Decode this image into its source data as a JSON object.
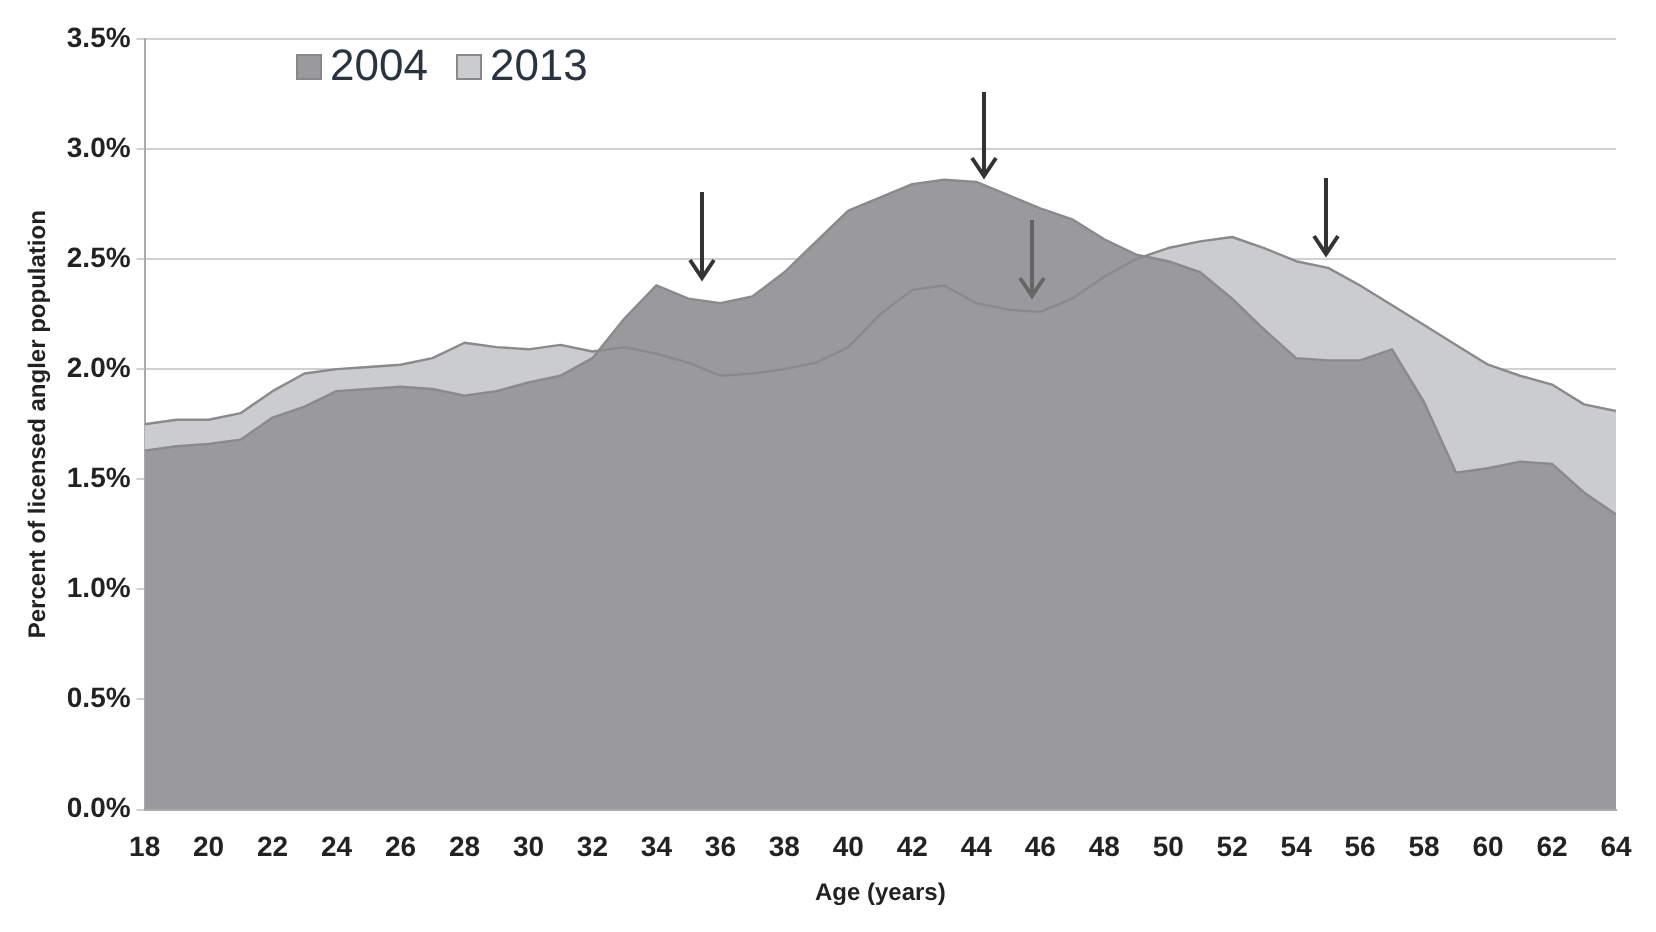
{
  "chart_data": {
    "type": "area",
    "xlabel": "Age (years)",
    "ylabel": "Percent of licensed angler population",
    "x": [
      18,
      19,
      20,
      21,
      22,
      23,
      24,
      25,
      26,
      27,
      28,
      29,
      30,
      31,
      32,
      33,
      34,
      35,
      36,
      37,
      38,
      39,
      40,
      41,
      42,
      43,
      44,
      45,
      46,
      47,
      48,
      49,
      50,
      51,
      52,
      53,
      54,
      55,
      56,
      57,
      58,
      59,
      60,
      61,
      62,
      63,
      64
    ],
    "series": [
      {
        "name": "2004",
        "color": "#9a9a9c",
        "values": [
          1.63,
          1.65,
          1.66,
          1.68,
          1.78,
          1.83,
          1.9,
          1.91,
          1.92,
          1.91,
          1.88,
          1.9,
          1.94,
          1.97,
          2.05,
          2.23,
          2.38,
          2.32,
          2.3,
          2.33,
          2.44,
          2.58,
          2.72,
          2.78,
          2.84,
          2.86,
          2.85,
          2.79,
          2.73,
          2.68,
          2.59,
          2.52,
          2.49,
          2.44,
          2.32,
          2.18,
          2.05,
          2.04,
          2.04,
          2.09,
          1.85,
          1.53,
          1.55,
          1.58,
          1.57,
          1.44,
          1.34
        ]
      },
      {
        "name": "2013",
        "color": "#cbcccd",
        "values": [
          1.75,
          1.77,
          1.77,
          1.8,
          1.9,
          1.98,
          2.0,
          2.01,
          2.02,
          2.05,
          2.12,
          2.1,
          2.09,
          2.11,
          2.08,
          2.1,
          2.07,
          2.03,
          1.97,
          1.98,
          2.0,
          2.03,
          2.1,
          2.25,
          2.36,
          2.38,
          2.3,
          2.27,
          2.26,
          2.32,
          2.42,
          2.5,
          2.55,
          2.58,
          2.6,
          2.55,
          2.49,
          2.46,
          2.38,
          2.29,
          2.2,
          2.11,
          2.02,
          1.97,
          1.93,
          1.84,
          1.81
        ]
      }
    ],
    "xlim": [
      18,
      64
    ],
    "xticks": [
      18,
      20,
      22,
      24,
      26,
      28,
      30,
      32,
      34,
      36,
      38,
      40,
      42,
      44,
      46,
      48,
      50,
      52,
      54,
      56,
      58,
      60,
      62,
      64
    ],
    "ylim": [
      0,
      3.5
    ],
    "yticks": [
      {
        "value": 0,
        "label": "0.0%"
      },
      {
        "value": 0.5,
        "label": "0.5%"
      },
      {
        "value": 1,
        "label": "1.0%"
      },
      {
        "value": 1.5,
        "label": "1.5%"
      },
      {
        "value": 2,
        "label": "2.0%"
      },
      {
        "value": 2.5,
        "label": "2.5%"
      },
      {
        "value": 3,
        "label": "3.0%"
      },
      {
        "value": 3.5,
        "label": "3.5%"
      }
    ],
    "grid": "y",
    "legend": "top left"
  }
}
